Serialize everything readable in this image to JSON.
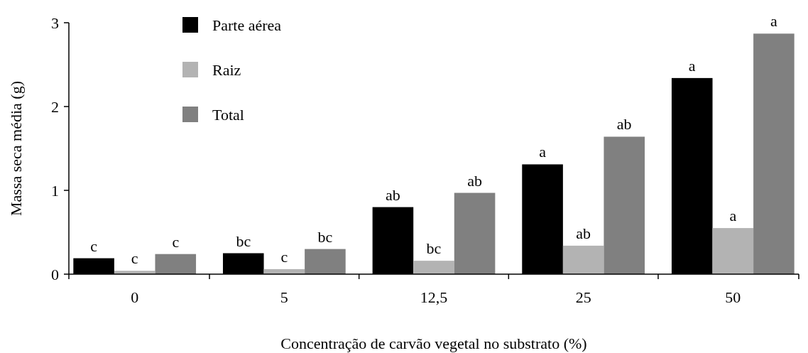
{
  "chart_data": {
    "type": "bar",
    "categories": [
      "0",
      "5",
      "12,5",
      "25",
      "50"
    ],
    "series": [
      {
        "name": "Parte aérea",
        "color": "#000000",
        "values": [
          0.19,
          0.25,
          0.8,
          1.31,
          2.34
        ],
        "value_labels": [
          "c",
          "bc",
          "ab",
          "a",
          "a"
        ]
      },
      {
        "name": "Raiz",
        "color": "#b3b3b3",
        "values": [
          0.04,
          0.06,
          0.16,
          0.34,
          0.55
        ],
        "value_labels": [
          "c",
          "c",
          "bc",
          "ab",
          "a"
        ]
      },
      {
        "name": "Total",
        "color": "#808080",
        "values": [
          0.24,
          0.3,
          0.97,
          1.64,
          2.87
        ],
        "value_labels": [
          "c",
          "bc",
          "ab",
          "ab",
          "a"
        ]
      }
    ],
    "xlabel": "Concentração de carvão vegetal no substrato (%)",
    "ylabel": "Massa seca média (g)",
    "ylim": [
      0,
      3
    ],
    "yticks": [
      0,
      1,
      2,
      3
    ],
    "legend": "top left"
  }
}
